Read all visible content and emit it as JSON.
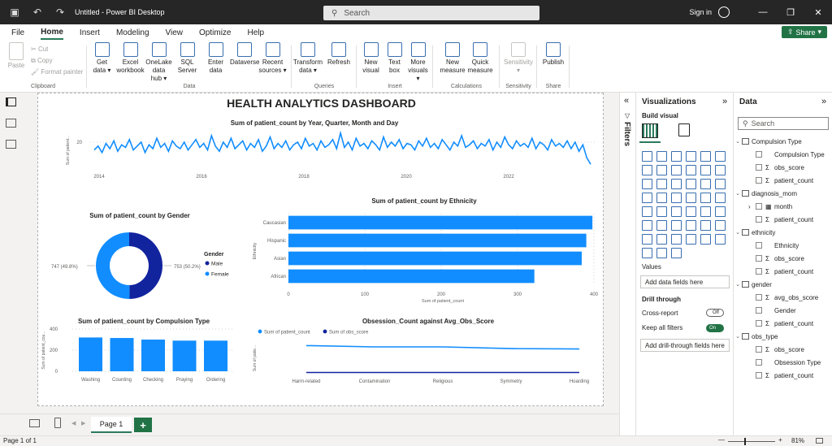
{
  "titlebar": {
    "title": "Untitled - Power BI Desktop",
    "search_placeholder": "Search",
    "sign_in": "Sign in"
  },
  "menu": {
    "items": [
      "File",
      "Home",
      "Insert",
      "Modeling",
      "View",
      "Optimize",
      "Help"
    ],
    "active": "Home",
    "share": "Share"
  },
  "ribbon": {
    "clipboard": {
      "label": "Clipboard",
      "paste": "Paste",
      "cut": "Cut",
      "copy": "Copy",
      "format_painter": "Format painter"
    },
    "data": {
      "label": "Data",
      "buttons": [
        {
          "l1": "Get",
          "l2": "data ▾"
        },
        {
          "l1": "Excel",
          "l2": "workbook"
        },
        {
          "l1": "OneLake data",
          "l2": "hub ▾"
        },
        {
          "l1": "SQL",
          "l2": "Server"
        },
        {
          "l1": "Enter",
          "l2": "data"
        },
        {
          "l1": "Dataverse",
          "l2": ""
        },
        {
          "l1": "Recent",
          "l2": "sources ▾"
        }
      ]
    },
    "queries": {
      "label": "Queries",
      "buttons": [
        {
          "l1": "Transform",
          "l2": "data ▾"
        },
        {
          "l1": "Refresh",
          "l2": ""
        }
      ]
    },
    "insert": {
      "label": "Insert",
      "buttons": [
        {
          "l1": "New",
          "l2": "visual"
        },
        {
          "l1": "Text",
          "l2": "box"
        },
        {
          "l1": "More",
          "l2": "visuals ▾"
        }
      ]
    },
    "calculations": {
      "label": "Calculations",
      "buttons": [
        {
          "l1": "New",
          "l2": "measure"
        },
        {
          "l1": "Quick",
          "l2": "measure"
        }
      ]
    },
    "sensitivity": {
      "label": "Sensitivity",
      "buttons": [
        {
          "l1": "Sensitivity",
          "l2": "▾"
        }
      ]
    },
    "share": {
      "label": "Share",
      "buttons": [
        {
          "l1": "Publish",
          "l2": ""
        }
      ]
    }
  },
  "report": {
    "title": "HEALTH ANALYTICS DASHBOARD"
  },
  "chart_data": [
    {
      "type": "line",
      "title": "Sum of patient_count by Year, Quarter, Month and Day",
      "ylabel": "Sum of patient...",
      "x_ticks": [
        "2014",
        "2016",
        "2018",
        "2020",
        "2022"
      ],
      "y_ticks": [
        "20"
      ],
      "ylim": [
        0,
        30
      ],
      "color": "#118dff",
      "values": [
        14,
        17,
        12,
        19,
        15,
        21,
        13,
        18,
        16,
        22,
        14,
        17,
        20,
        12,
        18,
        15,
        23,
        16,
        19,
        13,
        21,
        17,
        15,
        20,
        14,
        18,
        22,
        16,
        19,
        14,
        25,
        17,
        13,
        20,
        16,
        23,
        15,
        18,
        21,
        14,
        19,
        16,
        22,
        13,
        17,
        24,
        15,
        19,
        16,
        21,
        14,
        18,
        20,
        15,
        23,
        17,
        19,
        14,
        21,
        16,
        18,
        22,
        15,
        27,
        16,
        20,
        14,
        23,
        17,
        19,
        15,
        21,
        18,
        14,
        24,
        16,
        20,
        17,
        22,
        15,
        19,
        18,
        14,
        21,
        17,
        23,
        16,
        19,
        15,
        22,
        18,
        14,
        20,
        17,
        25,
        16,
        18,
        21,
        15,
        19,
        17,
        22,
        14,
        20,
        16,
        24,
        18,
        15,
        21,
        17,
        19,
        16,
        23,
        15,
        20,
        18,
        14,
        22,
        17,
        19,
        16,
        21,
        15,
        20,
        13,
        18,
        8,
        3
      ]
    },
    {
      "type": "pie",
      "title": "Sum of patient_count by Gender",
      "legend_title": "Gender",
      "categories": [
        "Male",
        "Female"
      ],
      "values": [
        747,
        753
      ],
      "data_labels": [
        "747 (49.8%)",
        "753 (50.2%)"
      ],
      "colors": [
        "#12239e",
        "#118dff"
      ]
    },
    {
      "type": "bar",
      "orientation": "horizontal",
      "title": "Sum of patient_count by Ethnicity",
      "xlabel": "Sum of patient_count",
      "ylabel": "Ethnicity",
      "categories": [
        "Caucasian",
        "Hispanic",
        "Asian",
        "African"
      ],
      "values": [
        398,
        390,
        384,
        322
      ],
      "x_ticks": [
        "0",
        "100",
        "200",
        "300",
        "400"
      ],
      "xlim": [
        0,
        400
      ],
      "color": "#118dff"
    },
    {
      "type": "bar",
      "title": "Sum of patient_count by Compulsion Type",
      "ylabel": "Sum of patient_cou...",
      "categories": [
        "Washing",
        "Counting",
        "Checking",
        "Praying",
        "Ordering"
      ],
      "values": [
        320,
        315,
        300,
        290,
        290
      ],
      "y_ticks": [
        "0",
        "200",
        "400"
      ],
      "ylim": [
        0,
        400
      ],
      "color": "#118dff"
    },
    {
      "type": "line",
      "title": "Obsession_Count against Avg_Obs_Score",
      "ylabel": "Sum of patie...",
      "categories": [
        "Harm-related",
        "Contamination",
        "Religious",
        "Symmetry",
        "Hoarding"
      ],
      "series": [
        {
          "name": "Sum of patient_count",
          "values": [
            320,
            305,
            305,
            285,
            280
          ],
          "color": "#118dff"
        },
        {
          "name": "Sum of obs_score",
          "values": [
            5,
            5,
            5,
            5,
            5
          ],
          "color": "#12239e"
        }
      ],
      "ylim": [
        0,
        400
      ]
    }
  ],
  "bottom": {
    "page_tab": "Page 1",
    "status": "Page 1 of 1",
    "zoom": "81%"
  },
  "filters": {
    "label": "Filters"
  },
  "visualizations": {
    "title": "Visualizations",
    "build_visual": "Build visual",
    "values_label": "Values",
    "add_data_fields": "Add data fields here",
    "drill_through": "Drill through",
    "cross_report": "Cross-report",
    "cross_report_state": "Off",
    "keep_all_filters": "Keep all filters",
    "keep_all_filters_state": "On",
    "add_drill_fields": "Add drill-through fields here"
  },
  "data_pane": {
    "title": "Data",
    "search_placeholder": "Search",
    "tables": [
      {
        "name": "Compulsion Type",
        "fields": [
          {
            "name": "Compulsion Type",
            "sigma": false
          },
          {
            "name": "obs_score",
            "sigma": true
          },
          {
            "name": "patient_count",
            "sigma": true
          }
        ]
      },
      {
        "name": "diagnosis_mom",
        "fields": [
          {
            "name": "month",
            "sigma": false,
            "expandable": true
          },
          {
            "name": "patient_count",
            "sigma": true
          }
        ]
      },
      {
        "name": "ethnicity",
        "fields": [
          {
            "name": "Ethnicity",
            "sigma": false
          },
          {
            "name": "obs_score",
            "sigma": true
          },
          {
            "name": "patient_count",
            "sigma": true
          }
        ]
      },
      {
        "name": "gender",
        "fields": [
          {
            "name": "avg_obs_score",
            "sigma": true
          },
          {
            "name": "Gender",
            "sigma": false
          },
          {
            "name": "patient_count",
            "sigma": true
          }
        ]
      },
      {
        "name": "obs_type",
        "fields": [
          {
            "name": "obs_score",
            "sigma": true
          },
          {
            "name": "Obsession Type",
            "sigma": false
          },
          {
            "name": "patient_count",
            "sigma": true
          }
        ]
      }
    ]
  }
}
